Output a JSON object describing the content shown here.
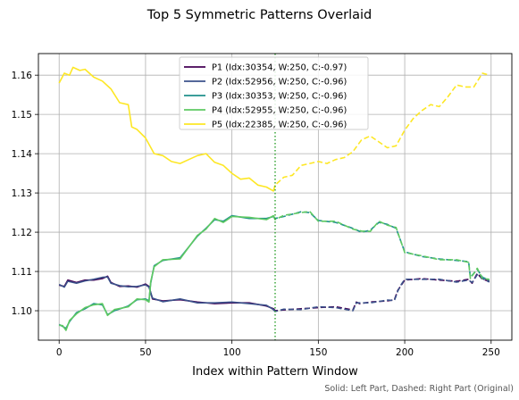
{
  "colors": {
    "P1": "#440154",
    "P2": "#3b528b",
    "P3": "#21918c",
    "P4": "#5ec962",
    "P5": "#fde725",
    "divider": "#2ca02c",
    "grid": "#b0b0b0"
  },
  "chart_data": {
    "type": "line",
    "title": "Top 5 Symmetric Patterns Overlaid",
    "xlabel": "Index within Pattern Window",
    "ylabel": "",
    "xlim": [
      -12,
      262
    ],
    "ylim": [
      1.0925,
      1.1655
    ],
    "xticks": [
      0,
      50,
      100,
      150,
      200,
      250
    ],
    "xtick_labels": [
      "0",
      "50",
      "100",
      "150",
      "200",
      "250"
    ],
    "yticks": [
      1.1,
      1.11,
      1.12,
      1.13,
      1.14,
      1.15,
      1.16
    ],
    "ytick_labels": [
      "1.10",
      "1.11",
      "1.12",
      "1.13",
      "1.14",
      "1.15",
      "1.16"
    ],
    "grid": true,
    "split_index": 125,
    "legend_position": "top-center",
    "footnote": "Solid: Left Part, Dashed: Right Part (Original)",
    "series": [
      {
        "key": "P1",
        "name": "P1 (Idx:30354, W:250, C:-0.97)",
        "x": [
          0,
          3,
          5,
          10,
          15,
          20,
          25,
          28,
          30,
          35,
          40,
          45,
          50,
          52,
          54,
          60,
          70,
          80,
          90,
          100,
          110,
          120,
          124,
          125,
          130,
          140,
          150,
          160,
          170,
          172,
          174,
          180,
          190,
          194,
          196,
          198,
          200,
          210,
          220,
          230,
          237,
          239,
          242,
          245,
          249
        ],
        "values": [
          1.1065,
          1.1062,
          1.1078,
          1.1072,
          1.1078,
          1.1078,
          1.1082,
          1.1088,
          1.1072,
          1.1062,
          1.1063,
          1.106,
          1.1068,
          1.1062,
          1.103,
          1.1025,
          1.1028,
          1.1022,
          1.1018,
          1.102,
          1.102,
          1.1012,
          1.1005,
          1.1,
          1.1002,
          1.1005,
          1.1008,
          1.101,
          1.1002,
          1.1022,
          1.1018,
          1.1022,
          1.1025,
          1.1028,
          1.1052,
          1.1065,
          1.1078,
          1.1082,
          1.1078,
          1.1075,
          1.108,
          1.107,
          1.1095,
          1.108,
          1.1075
        ]
      },
      {
        "key": "P2",
        "name": "P2 (Idx:52956, W:250, C:-0.96)",
        "x": [
          0,
          3,
          5,
          10,
          15,
          20,
          25,
          28,
          30,
          35,
          40,
          45,
          50,
          52,
          54,
          60,
          70,
          80,
          90,
          100,
          110,
          120,
          124,
          125,
          130,
          140,
          150,
          160,
          170,
          172,
          174,
          180,
          190,
          194,
          196,
          198,
          200,
          210,
          220,
          230,
          237,
          239,
          242,
          245,
          249
        ],
        "values": [
          1.1067,
          1.106,
          1.1075,
          1.107,
          1.1076,
          1.108,
          1.1085,
          1.1086,
          1.107,
          1.1064,
          1.1061,
          1.1062,
          1.1066,
          1.106,
          1.1032,
          1.1023,
          1.103,
          1.102,
          1.102,
          1.1022,
          1.1018,
          1.1014,
          1.1003,
          1.0998,
          1.1004,
          1.1003,
          1.101,
          1.1008,
          1.1,
          1.102,
          1.102,
          1.102,
          1.1027,
          1.1026,
          1.105,
          1.1067,
          1.108,
          1.108,
          1.108,
          1.1073,
          1.1078,
          1.1072,
          1.1092,
          1.1082,
          1.1073
        ]
      },
      {
        "key": "P3",
        "name": "P3 (Idx:30353, W:250, C:-0.96)",
        "x": [
          0,
          2,
          4,
          6,
          10,
          15,
          20,
          25,
          28,
          32,
          40,
          45,
          50,
          52,
          53,
          55,
          60,
          70,
          80,
          85,
          90,
          95,
          100,
          110,
          120,
          124,
          125,
          130,
          140,
          145,
          150,
          160,
          170,
          175,
          180,
          185,
          190,
          195,
          200,
          210,
          220,
          230,
          237,
          238,
          242,
          245,
          249
        ],
        "values": [
          1.0965,
          1.096,
          1.0955,
          1.0972,
          1.0995,
          1.1005,
          1.1018,
          1.1015,
          1.099,
          1.1,
          1.1012,
          1.1028,
          1.103,
          1.1025,
          1.107,
          1.1115,
          1.1128,
          1.1135,
          1.119,
          1.121,
          1.1232,
          1.1228,
          1.1242,
          1.1235,
          1.1235,
          1.124,
          1.1235,
          1.124,
          1.1252,
          1.125,
          1.123,
          1.1225,
          1.121,
          1.12,
          1.1205,
          1.1225,
          1.122,
          1.121,
          1.115,
          1.1138,
          1.1132,
          1.1128,
          1.1125,
          1.1085,
          1.1105,
          1.1085,
          1.1078
        ]
      },
      {
        "key": "P4",
        "name": "P4 (Idx:52955, W:250, C:-0.96)",
        "x": [
          0,
          2,
          4,
          6,
          10,
          15,
          20,
          25,
          28,
          32,
          40,
          45,
          50,
          52,
          53,
          55,
          60,
          70,
          80,
          85,
          90,
          95,
          100,
          110,
          120,
          124,
          125,
          130,
          140,
          145,
          150,
          160,
          170,
          175,
          180,
          185,
          190,
          195,
          200,
          210,
          220,
          230,
          237,
          238,
          242,
          245,
          249
        ],
        "values": [
          1.0963,
          1.0962,
          1.095,
          1.0975,
          1.0992,
          1.1008,
          1.1015,
          1.1018,
          1.0988,
          1.1003,
          1.101,
          1.103,
          1.1028,
          1.1022,
          1.1074,
          1.1112,
          1.113,
          1.1132,
          1.1192,
          1.1208,
          1.1235,
          1.1225,
          1.124,
          1.1238,
          1.1232,
          1.1242,
          1.1232,
          1.1243,
          1.125,
          1.1253,
          1.1228,
          1.1228,
          1.1208,
          1.1203,
          1.1202,
          1.1228,
          1.1218,
          1.1212,
          1.1148,
          1.114,
          1.113,
          1.113,
          1.1123,
          1.1082,
          1.1108,
          1.1082,
          1.108
        ]
      },
      {
        "key": "P5",
        "name": "P5 (Idx:22385, W:250, C:-0.96)",
        "x": [
          0,
          3,
          6,
          8,
          12,
          15,
          20,
          25,
          30,
          35,
          40,
          42,
          45,
          50,
          55,
          60,
          65,
          70,
          75,
          80,
          85,
          90,
          95,
          100,
          105,
          110,
          115,
          120,
          124,
          125,
          130,
          135,
          140,
          145,
          150,
          155,
          160,
          165,
          170,
          175,
          180,
          185,
          190,
          195,
          200,
          205,
          210,
          215,
          220,
          225,
          230,
          235,
          240,
          245,
          249
        ],
        "values": [
          1.158,
          1.1605,
          1.16,
          1.162,
          1.1612,
          1.1615,
          1.1595,
          1.1585,
          1.1565,
          1.153,
          1.1525,
          1.1468,
          1.1462,
          1.144,
          1.14,
          1.1395,
          1.138,
          1.1375,
          1.1385,
          1.1395,
          1.14,
          1.1378,
          1.137,
          1.135,
          1.1335,
          1.1338,
          1.132,
          1.1315,
          1.1305,
          1.132,
          1.134,
          1.1345,
          1.137,
          1.1375,
          1.138,
          1.1375,
          1.1385,
          1.139,
          1.1405,
          1.1435,
          1.1445,
          1.143,
          1.1415,
          1.142,
          1.146,
          1.149,
          1.151,
          1.1525,
          1.152,
          1.1545,
          1.1575,
          1.157,
          1.157,
          1.1605,
          1.16
        ]
      }
    ]
  }
}
